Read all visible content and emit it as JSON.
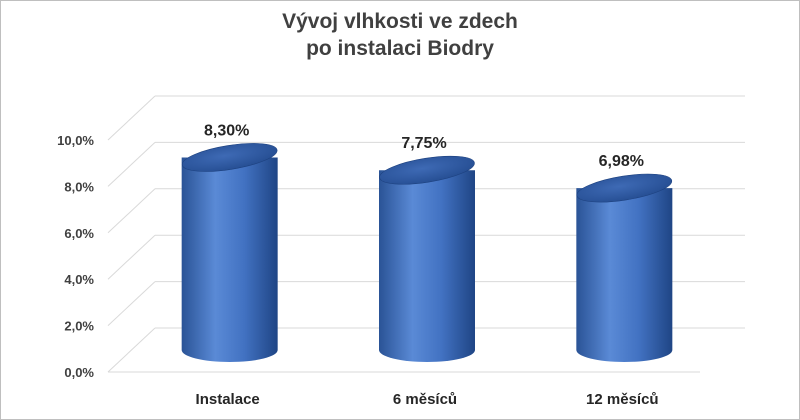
{
  "chart_data": {
    "type": "bar",
    "style": "3d-cylinder",
    "title_lines": [
      "Vývoj vlhkosti ve zdech",
      "po instalaci Biodry"
    ],
    "categories": [
      "Instalace",
      "6 měsíců",
      "12 měsíců"
    ],
    "values": [
      8.3,
      7.75,
      6.98
    ],
    "data_labels": [
      "8,30%",
      "7,75%",
      "6,98%"
    ],
    "ylim": [
      0,
      10
    ],
    "yticks": [
      0,
      2,
      4,
      6,
      8,
      10
    ],
    "ytick_labels": [
      "0,0%",
      "2,0%",
      "4,0%",
      "6,0%",
      "8,0%",
      "10,0%"
    ],
    "xlabel": "",
    "ylabel": "",
    "grid": true,
    "bar_color": "#4472c4",
    "bar_top_color": "#2f5597"
  }
}
